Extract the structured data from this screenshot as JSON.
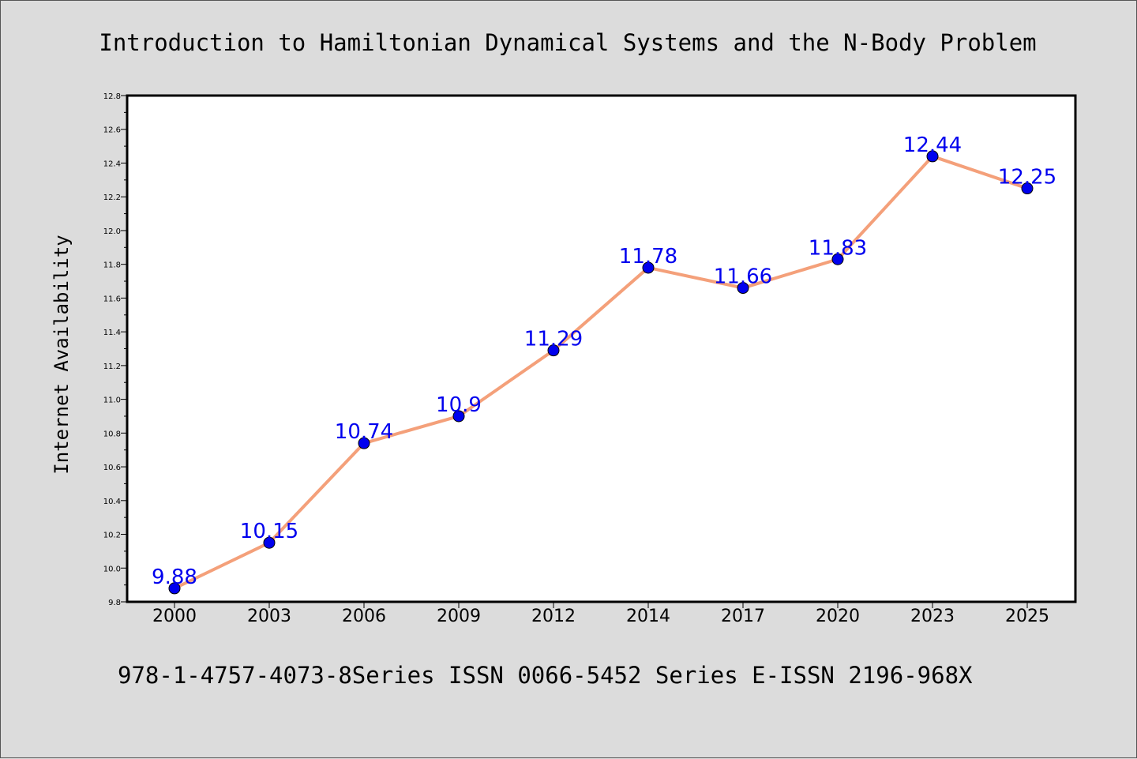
{
  "chart_data": {
    "type": "line",
    "title": "Introduction to Hamiltonian Dynamical Systems and the N-Body Problem",
    "xlabel": "",
    "ylabel": "Internet Availability",
    "footer": "978-1-4757-4073-8Series ISSN 0066-5452 Series E-ISSN 2196-968X",
    "categories": [
      "2000",
      "2003",
      "2006",
      "2009",
      "2012",
      "2014",
      "2017",
      "2020",
      "2023",
      "2025"
    ],
    "values": [
      9.88,
      10.15,
      10.74,
      10.9,
      11.29,
      11.78,
      11.66,
      11.83,
      12.44,
      12.25
    ],
    "data_labels": [
      "9.88",
      "10.15",
      "10.74",
      "10.9",
      "11.29",
      "11.78",
      "11.66",
      "11.83",
      "12.44",
      "12.25"
    ],
    "ylim": [
      9.8,
      12.8
    ],
    "yticks": [
      "9.8",
      "10.0",
      "10.2",
      "10.4",
      "10.6",
      "10.8",
      "11.0",
      "11.2",
      "11.4",
      "11.6",
      "11.8",
      "12.0",
      "12.2",
      "12.4",
      "12.6",
      "12.8"
    ],
    "grid": false,
    "legend": "none",
    "colors": {
      "line": "#f4a07a",
      "marker": "#0000ee",
      "data_label": "#0000ee",
      "background": "#dcdcdc",
      "plot_background": "#ffffff"
    }
  }
}
